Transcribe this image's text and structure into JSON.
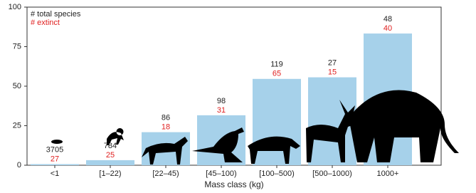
{
  "chart_data": {
    "type": "bar",
    "legend": [
      "# total species",
      "# extinct"
    ],
    "legend_colors": [
      "#222222",
      "#e02020"
    ],
    "x_label": "Mass class (kg)",
    "categories": [
      "<1",
      "[1–22)",
      "[22–45)",
      "[45–100)",
      "[100–500)",
      "[500–1000)",
      "1000+"
    ],
    "values": [
      0.7,
      3.2,
      20.9,
      31.6,
      54.6,
      55.6,
      83.3
    ],
    "total_species": [
      3705,
      784,
      86,
      98,
      119,
      27,
      48
    ],
    "extinct": [
      27,
      25,
      18,
      31,
      65,
      15,
      40
    ],
    "color": "#a6d1ea",
    "ylim": [
      0,
      100
    ],
    "yticks": [
      0,
      25,
      50,
      75,
      100
    ]
  }
}
